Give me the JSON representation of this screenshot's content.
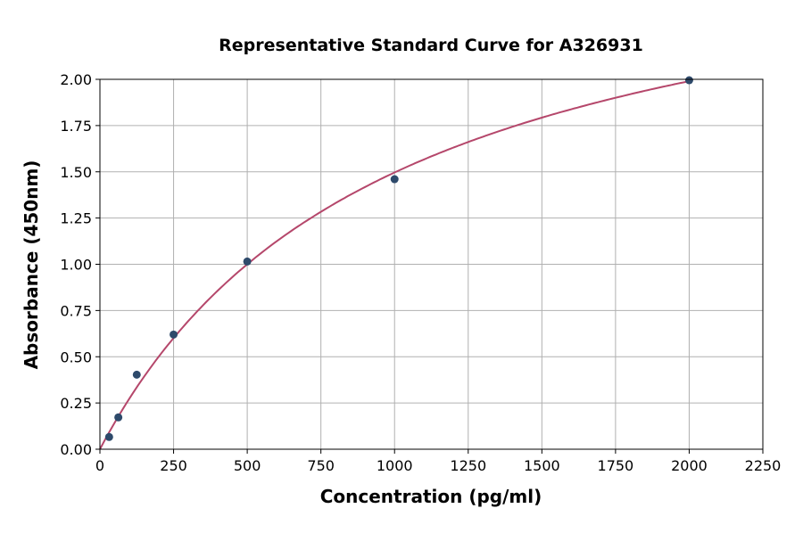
{
  "chart_data": {
    "type": "scatter",
    "title": "Representative Standard Curve for A326931",
    "xlabel": "Concentration (pg/ml)",
    "ylabel": "Absorbance (450nm)",
    "xlim": [
      0,
      2250
    ],
    "ylim": [
      0,
      2.0
    ],
    "xticks": [
      0,
      250,
      500,
      750,
      1000,
      1250,
      1500,
      1750,
      2000,
      2250
    ],
    "yticks": [
      "0.00",
      "0.25",
      "0.50",
      "0.75",
      "1.00",
      "1.25",
      "1.50",
      "1.75",
      "2.00"
    ],
    "grid": true,
    "colors": {
      "points": "#2e4a6b",
      "curve": "#b5476b"
    },
    "series": [
      {
        "x": [
          31.25,
          62.5,
          125,
          250,
          500,
          1000,
          2000
        ],
        "y": [
          0.066,
          0.172,
          0.403,
          0.62,
          1.015,
          1.46,
          1.995
        ]
      }
    ],
    "fit_curve": {
      "type": "fitted standard curve",
      "x_range": [
        0,
        2000
      ]
    }
  }
}
